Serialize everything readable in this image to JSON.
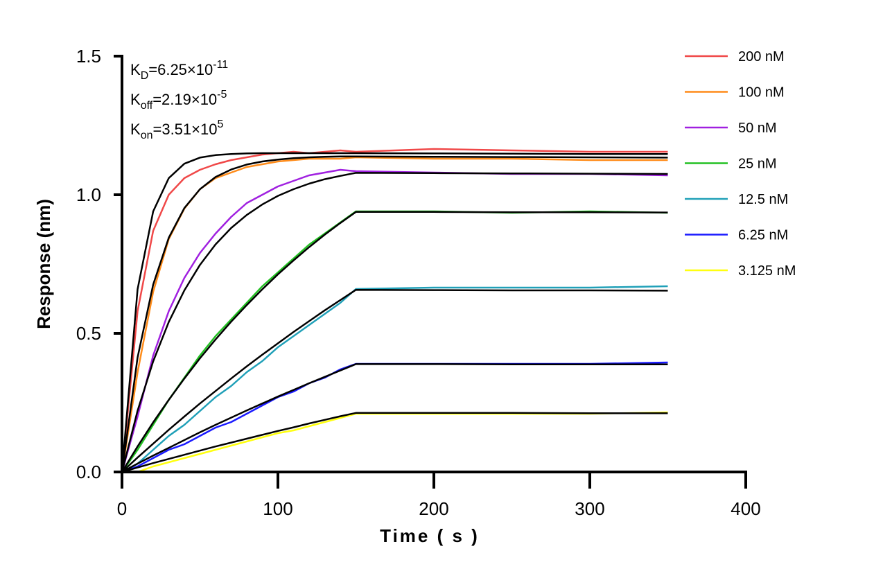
{
  "chart_data": {
    "type": "line",
    "xlabel": "Time ( s )",
    "ylabel": "Response (nm)",
    "xlim": [
      0,
      400
    ],
    "ylim": [
      0,
      1.5
    ],
    "xticks": [
      "0",
      "100",
      "200",
      "300",
      "400"
    ],
    "yticks": [
      "0.0",
      "0.5",
      "1.0",
      "1.5"
    ],
    "grid": false,
    "legend_position": "right",
    "annotations": {
      "kd": {
        "label": "K",
        "sub": "D",
        "mid": "=6.25×10",
        "sup": "-11"
      },
      "koff": {
        "label": "K",
        "sub": "off",
        "mid": "=2.19×10",
        "sup": "-5"
      },
      "kon": {
        "label": "K",
        "sub": "on",
        "mid": "=3.51×10",
        "sup": "5"
      }
    },
    "x": [
      0,
      10,
      20,
      30,
      40,
      50,
      60,
      70,
      80,
      90,
      100,
      110,
      120,
      130,
      140,
      150,
      200,
      250,
      300,
      350
    ],
    "series": [
      {
        "name": "200 nM",
        "color": "#f04848",
        "values": [
          0,
          0.58,
          0.87,
          1.0,
          1.06,
          1.09,
          1.11,
          1.125,
          1.135,
          1.145,
          1.15,
          1.155,
          1.15,
          1.155,
          1.16,
          1.155,
          1.165,
          1.16,
          1.155,
          1.155
        ],
        "fit": [
          0,
          0.659,
          0.94,
          1.06,
          1.112,
          1.134,
          1.143,
          1.147,
          1.149,
          1.15,
          1.15,
          1.15,
          1.15,
          1.15,
          1.15,
          1.15,
          1.149,
          1.148,
          1.147,
          1.147
        ]
      },
      {
        "name": "100 nM",
        "color": "#ff8c1a",
        "values": [
          0,
          0.36,
          0.65,
          0.84,
          0.95,
          1.02,
          1.06,
          1.08,
          1.1,
          1.11,
          1.12,
          1.125,
          1.13,
          1.13,
          1.13,
          1.135,
          1.13,
          1.13,
          1.125,
          1.125
        ],
        "fit": [
          0,
          0.413,
          0.676,
          0.845,
          0.952,
          1.02,
          1.064,
          1.091,
          1.109,
          1.12,
          1.127,
          1.132,
          1.135,
          1.137,
          1.138,
          1.138,
          1.137,
          1.136,
          1.135,
          1.134
        ]
      },
      {
        "name": "50 nM",
        "color": "#a020e0",
        "values": [
          0,
          0.2,
          0.42,
          0.58,
          0.7,
          0.79,
          0.86,
          0.92,
          0.97,
          1.0,
          1.03,
          1.05,
          1.07,
          1.08,
          1.09,
          1.085,
          1.08,
          1.075,
          1.075,
          1.07
        ],
        "fit": [
          0,
          0.221,
          0.399,
          0.541,
          0.655,
          0.747,
          0.821,
          0.88,
          0.927,
          0.965,
          0.996,
          1.02,
          1.04,
          1.056,
          1.068,
          1.079,
          1.078,
          1.077,
          1.076,
          1.075
        ]
      },
      {
        "name": "25 nM",
        "color": "#22c022",
        "values": [
          0,
          0.08,
          0.17,
          0.26,
          0.34,
          0.42,
          0.49,
          0.55,
          0.61,
          0.67,
          0.72,
          0.77,
          0.82,
          0.86,
          0.9,
          0.94,
          0.94,
          0.935,
          0.94,
          0.935
        ],
        "fit": [
          0,
          0.092,
          0.179,
          0.26,
          0.337,
          0.41,
          0.478,
          0.542,
          0.602,
          0.659,
          0.713,
          0.763,
          0.811,
          0.856,
          0.898,
          0.938,
          0.938,
          0.937,
          0.937,
          0.936
        ]
      },
      {
        "name": "12.5 nM",
        "color": "#20a0b8",
        "values": [
          0,
          0.03,
          0.08,
          0.13,
          0.17,
          0.22,
          0.27,
          0.31,
          0.36,
          0.4,
          0.45,
          0.49,
          0.53,
          0.57,
          0.61,
          0.66,
          0.665,
          0.665,
          0.665,
          0.67
        ],
        "fit": [
          0,
          0.052,
          0.102,
          0.152,
          0.2,
          0.247,
          0.292,
          0.337,
          0.381,
          0.423,
          0.464,
          0.505,
          0.544,
          0.583,
          0.62,
          0.657,
          0.656,
          0.655,
          0.655,
          0.654
        ]
      },
      {
        "name": "6.25 nM",
        "color": "#1a1aff",
        "values": [
          0,
          0.02,
          0.05,
          0.08,
          0.1,
          0.13,
          0.16,
          0.18,
          0.21,
          0.24,
          0.27,
          0.29,
          0.32,
          0.34,
          0.37,
          0.39,
          0.39,
          0.39,
          0.39,
          0.395
        ],
        "fit": [
          0,
          0.03,
          0.059,
          0.087,
          0.115,
          0.143,
          0.17,
          0.196,
          0.222,
          0.247,
          0.272,
          0.296,
          0.32,
          0.343,
          0.366,
          0.389,
          0.389,
          0.388,
          0.388,
          0.388
        ]
      },
      {
        "name": "3.125 nM",
        "color": "#ffff10",
        "values": [
          0,
          0,
          0.02,
          0.035,
          0.05,
          0.065,
          0.08,
          0.095,
          0.11,
          0.125,
          0.14,
          0.15,
          0.165,
          0.18,
          0.195,
          0.21,
          0.21,
          0.21,
          0.21,
          0.215
        ],
        "fit": [
          0,
          0.016,
          0.032,
          0.047,
          0.062,
          0.077,
          0.092,
          0.106,
          0.12,
          0.134,
          0.148,
          0.161,
          0.175,
          0.188,
          0.201,
          0.213,
          0.213,
          0.213,
          0.212,
          0.212
        ]
      }
    ],
    "fit_color": "#000000"
  }
}
